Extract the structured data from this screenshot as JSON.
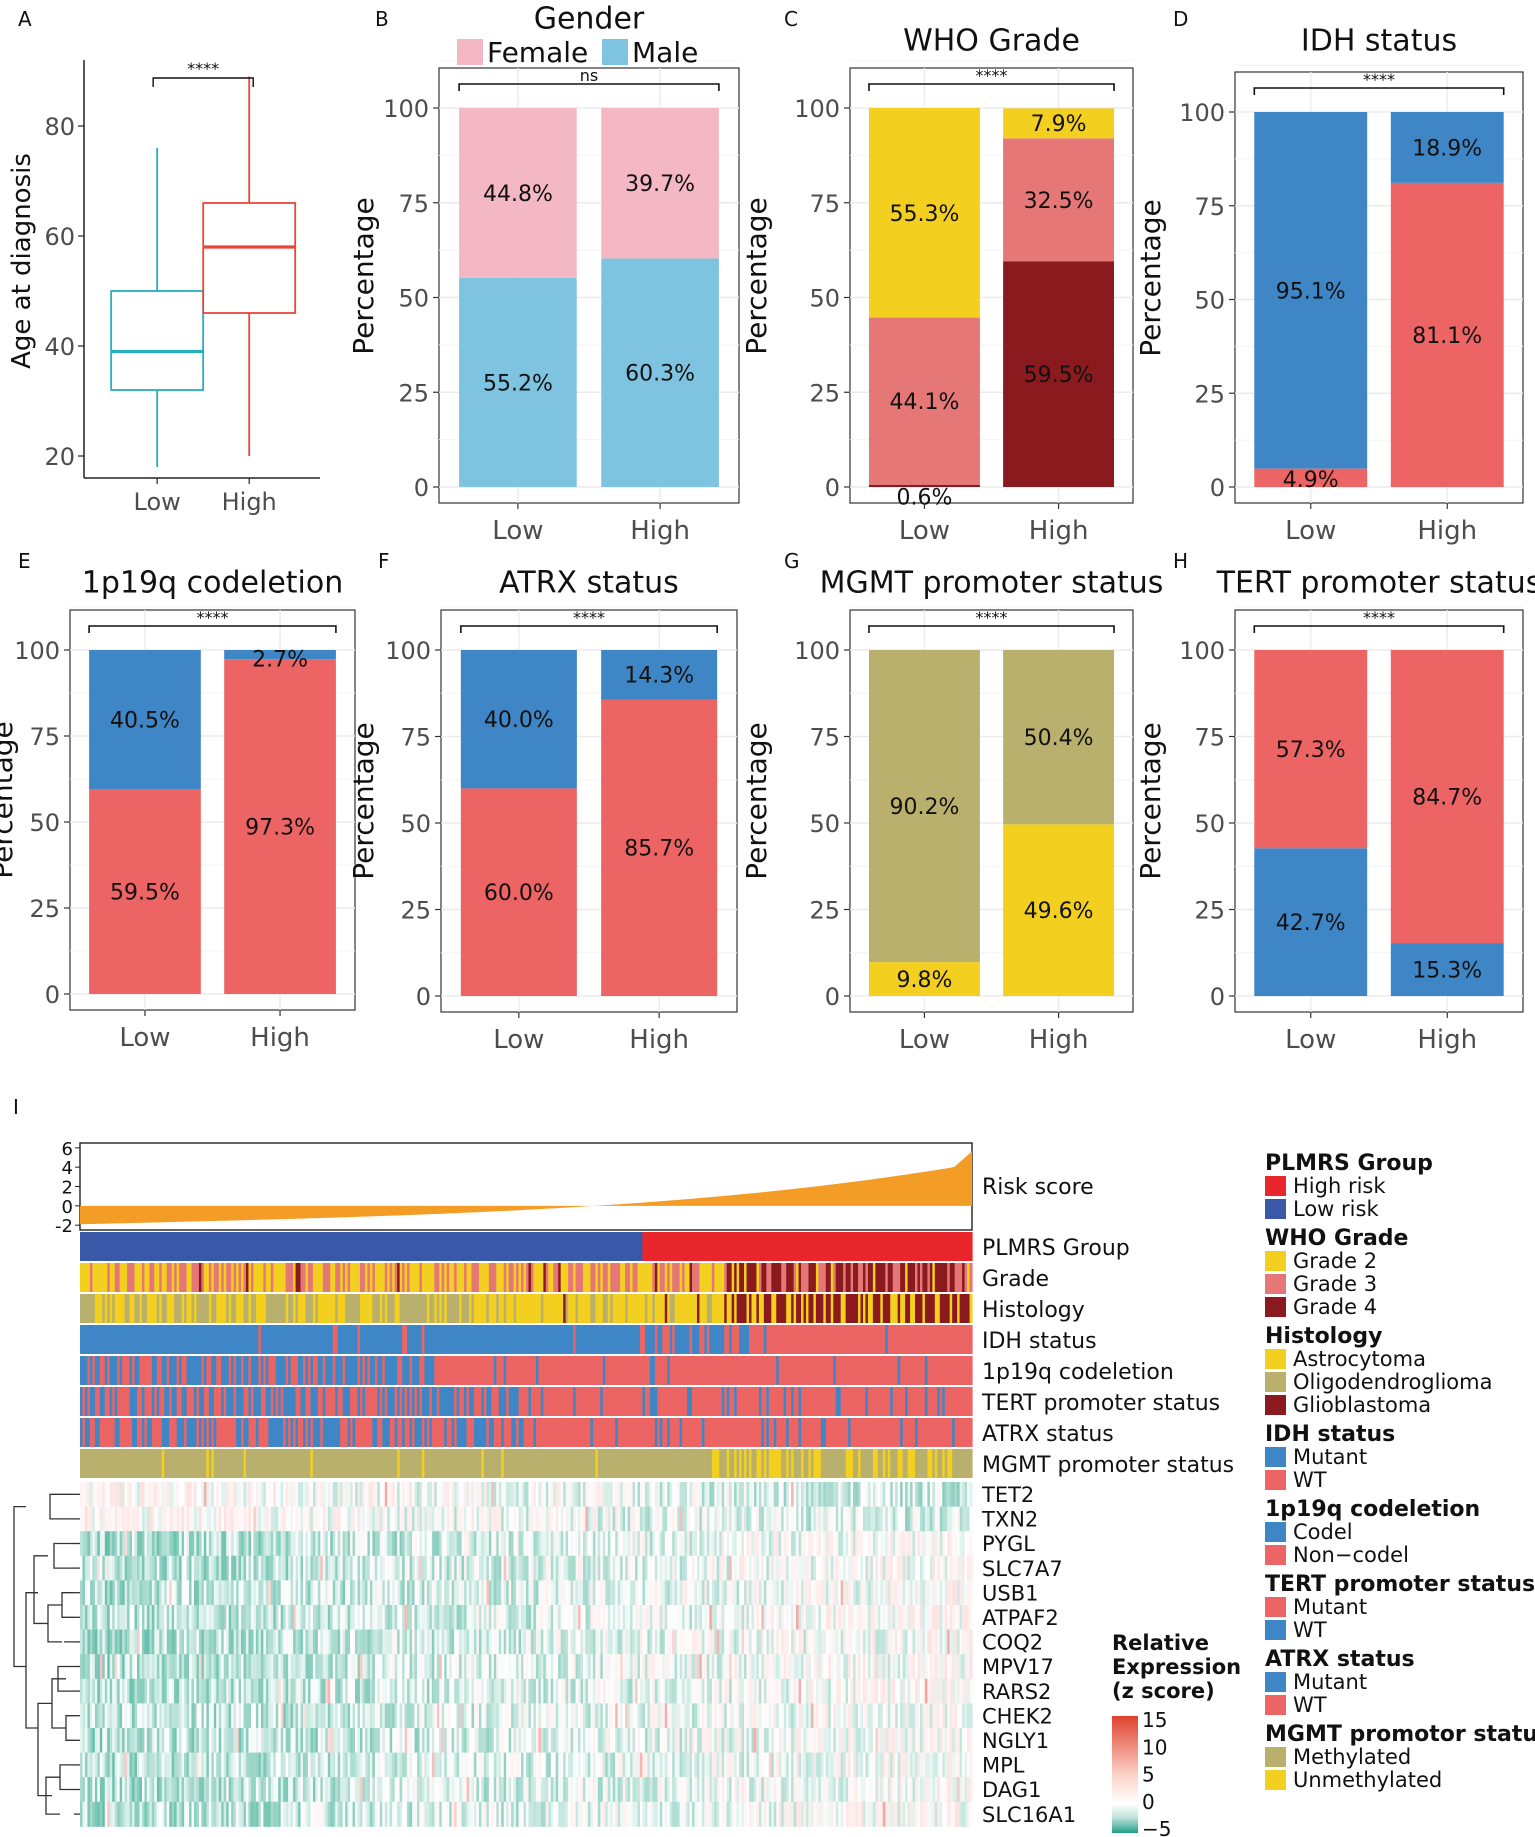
{
  "chart_data": [
    {
      "panel": "A",
      "type": "box",
      "title": "",
      "ylabel": "Age at diagnosis",
      "xlabel": "",
      "categories": [
        "Low",
        "High"
      ],
      "ylim": [
        16,
        92
      ],
      "yticks": [
        20,
        40,
        60,
        80
      ],
      "sig_label": "****",
      "boxes": [
        {
          "name": "Low",
          "min": 18,
          "q1": 32,
          "median": 39,
          "q3": 50,
          "max": 76,
          "color": "#26AFBD"
        },
        {
          "name": "High",
          "min": 20,
          "q1": 46,
          "median": 58,
          "q3": 66,
          "max": 89,
          "color": "#E8473A"
        }
      ]
    },
    {
      "panel": "B",
      "type": "bar",
      "title": "Gender",
      "ylabel": "Percentage",
      "categories": [
        "Low",
        "High"
      ],
      "ylim": [
        0,
        100
      ],
      "yticks": [
        0,
        25,
        50,
        75,
        100
      ],
      "sig_label": "ns",
      "legend_top": [
        {
          "label": "Female",
          "color": "#F4B7C4"
        },
        {
          "label": "Male",
          "color": "#7EC3E0"
        }
      ],
      "stacks": [
        [
          {
            "value": 55.2,
            "color": "#7EC3E0",
            "label": "55.2%"
          },
          {
            "value": 44.8,
            "color": "#F4B7C4",
            "label": "44.8%"
          }
        ],
        [
          {
            "value": 60.3,
            "color": "#7EC3E0",
            "label": "60.3%"
          },
          {
            "value": 39.7,
            "color": "#F4B7C4",
            "label": "39.7%"
          }
        ]
      ]
    },
    {
      "panel": "C",
      "type": "bar",
      "title": "WHO Grade",
      "ylabel": "Percentage",
      "categories": [
        "Low",
        "High"
      ],
      "ylim": [
        0,
        100
      ],
      "yticks": [
        0,
        25,
        50,
        75,
        100
      ],
      "sig_label": "****",
      "stacks": [
        [
          {
            "value": 0.6,
            "color": "#8B1A1F",
            "label": "0.6%",
            "label_y": -2.5
          },
          {
            "value": 44.1,
            "color": "#E57777",
            "label": "44.1%"
          },
          {
            "value": 55.3,
            "color": "#F3CF20",
            "label": "55.3%"
          }
        ],
        [
          {
            "value": 59.5,
            "color": "#8B1A1F",
            "label": "59.5%"
          },
          {
            "value": 32.5,
            "color": "#E57777",
            "label": "32.5%"
          },
          {
            "value": 7.9,
            "color": "#F3CF20",
            "label": "7.9%",
            "label_y": 96
          }
        ]
      ]
    },
    {
      "panel": "D",
      "type": "bar",
      "title": "IDH status",
      "ylabel": "Percentage",
      "categories": [
        "Low",
        "High"
      ],
      "ylim": [
        0,
        100
      ],
      "yticks": [
        0,
        25,
        50,
        75,
        100
      ],
      "sig_label": "****",
      "stacks": [
        [
          {
            "value": 4.9,
            "color": "#EC6463",
            "label": "4.9%",
            "label_y": 2.2
          },
          {
            "value": 95.1,
            "color": "#3F86C6",
            "label": "95.1%"
          }
        ],
        [
          {
            "value": 81.1,
            "color": "#EC6463",
            "label": "81.1%"
          },
          {
            "value": 18.9,
            "color": "#3F86C6",
            "label": "18.9%"
          }
        ]
      ]
    },
    {
      "panel": "E",
      "type": "bar",
      "title": "1p19q codeletion",
      "ylabel": "Percentage",
      "categories": [
        "Low",
        "High"
      ],
      "ylim": [
        0,
        100
      ],
      "yticks": [
        0,
        25,
        50,
        75,
        100
      ],
      "sig_label": "****",
      "stacks": [
        [
          {
            "value": 59.5,
            "color": "#EC6463",
            "label": "59.5%"
          },
          {
            "value": 40.5,
            "color": "#3F86C6",
            "label": "40.5%"
          }
        ],
        [
          {
            "value": 97.3,
            "color": "#EC6463",
            "label": "97.3%"
          },
          {
            "value": 2.7,
            "color": "#3F86C6",
            "label": "2.7%",
            "label_y": 97.5
          }
        ]
      ]
    },
    {
      "panel": "F",
      "type": "bar",
      "title": "ATRX status",
      "ylabel": "Percentage",
      "categories": [
        "Low",
        "High"
      ],
      "ylim": [
        0,
        100
      ],
      "yticks": [
        0,
        25,
        50,
        75,
        100
      ],
      "sig_label": "****",
      "stacks": [
        [
          {
            "value": 60.0,
            "color": "#EC6463",
            "label": "60.0%"
          },
          {
            "value": 40.0,
            "color": "#3F86C6",
            "label": "40.0%"
          }
        ],
        [
          {
            "value": 85.7,
            "color": "#EC6463",
            "label": "85.7%"
          },
          {
            "value": 14.3,
            "color": "#3F86C6",
            "label": "14.3%"
          }
        ]
      ]
    },
    {
      "panel": "G",
      "type": "bar",
      "title": "MGMT promoter status",
      "ylabel": "Percentage",
      "categories": [
        "Low",
        "High"
      ],
      "ylim": [
        0,
        100
      ],
      "yticks": [
        0,
        25,
        50,
        75,
        100
      ],
      "sig_label": "****",
      "stacks": [
        [
          {
            "value": 9.8,
            "color": "#F3CF20",
            "label": "9.8%"
          },
          {
            "value": 90.2,
            "color": "#B9B06D",
            "label": "90.2%"
          }
        ],
        [
          {
            "value": 49.6,
            "color": "#F3CF20",
            "label": "49.6%"
          },
          {
            "value": 50.4,
            "color": "#B9B06D",
            "label": "50.4%"
          }
        ]
      ]
    },
    {
      "panel": "H",
      "type": "bar",
      "title": "TERT promoter status",
      "ylabel": "Percentage",
      "categories": [
        "Low",
        "High"
      ],
      "ylim": [
        0,
        100
      ],
      "yticks": [
        0,
        25,
        50,
        75,
        100
      ],
      "sig_label": "****",
      "stacks": [
        [
          {
            "value": 42.7,
            "color": "#3F86C6",
            "label": "42.7%"
          },
          {
            "value": 57.3,
            "color": "#EC6463",
            "label": "57.3%"
          }
        ],
        [
          {
            "value": 15.3,
            "color": "#3F86C6",
            "label": "15.3%"
          },
          {
            "value": 84.7,
            "color": "#EC6463",
            "label": "84.7%"
          }
        ]
      ]
    },
    {
      "panel": "I",
      "type": "heatmap",
      "risk_score": {
        "label": "Risk score",
        "yticks": [
          -2,
          0,
          2,
          4,
          6
        ],
        "ylim": [
          -2.5,
          6.5
        ],
        "min": -2.2,
        "max": 6.1,
        "color": "#F39C26"
      },
      "annotation_rows": [
        "PLMRS Group",
        "Grade",
        "Histology",
        "IDH status",
        "1p19q codeletion",
        "TERT promoter status",
        "ATRX status",
        "MGMT promoter status"
      ],
      "genes": [
        "TET2",
        "TXN2",
        "PYGL",
        "SLC7A7",
        "USB1",
        "ATPAF2",
        "COQ2",
        "MPV17",
        "RARS2",
        "CHEK2",
        "NGLY1",
        "MPL",
        "DAG1",
        "SLC16A1"
      ],
      "colorbar": {
        "title": [
          "Relative",
          "Expression",
          "(z score)"
        ],
        "ticks": [
          15,
          10,
          5,
          0,
          -5
        ]
      },
      "legend": [
        {
          "title": "PLMRS Group",
          "items": [
            {
              "label": "High risk",
              "color": "#E8262C"
            },
            {
              "label": "Low risk",
              "color": "#3A58A8"
            }
          ]
        },
        {
          "title": "WHO Grade",
          "items": [
            {
              "label": "Grade 2",
              "color": "#F3CF20"
            },
            {
              "label": "Grade 3",
              "color": "#E57777"
            },
            {
              "label": "Grade 4",
              "color": "#8B1A1F"
            }
          ]
        },
        {
          "title": "Histology",
          "items": [
            {
              "label": "Astrocytoma",
              "color": "#F3CF20"
            },
            {
              "label": "Oligodendroglioma",
              "color": "#B9B06D"
            },
            {
              "label": "Glioblastoma",
              "color": "#8B1A1F"
            }
          ]
        },
        {
          "title": "IDH status",
          "items": [
            {
              "label": "Mutant",
              "color": "#3F86C6"
            },
            {
              "label": "WT",
              "color": "#EC6463"
            }
          ]
        },
        {
          "title": "1p19q codeletion",
          "items": [
            {
              "label": "Codel",
              "color": "#3F86C6"
            },
            {
              "label": "Non−codel",
              "color": "#EC6463"
            }
          ]
        },
        {
          "title": "TERT promoter status",
          "items": [
            {
              "label": "Mutant",
              "color": "#EC6463"
            },
            {
              "label": "WT",
              "color": "#3F86C6"
            }
          ]
        },
        {
          "title": "ATRX status",
          "items": [
            {
              "label": "Mutant",
              "color": "#3F86C6"
            },
            {
              "label": "WT",
              "color": "#EC6463"
            }
          ]
        },
        {
          "title": "MGMT promotor status",
          "items": [
            {
              "label": "Methylated",
              "color": "#B9B06D"
            },
            {
              "label": "Unmethylated",
              "color": "#F3CF20"
            }
          ]
        }
      ]
    }
  ]
}
